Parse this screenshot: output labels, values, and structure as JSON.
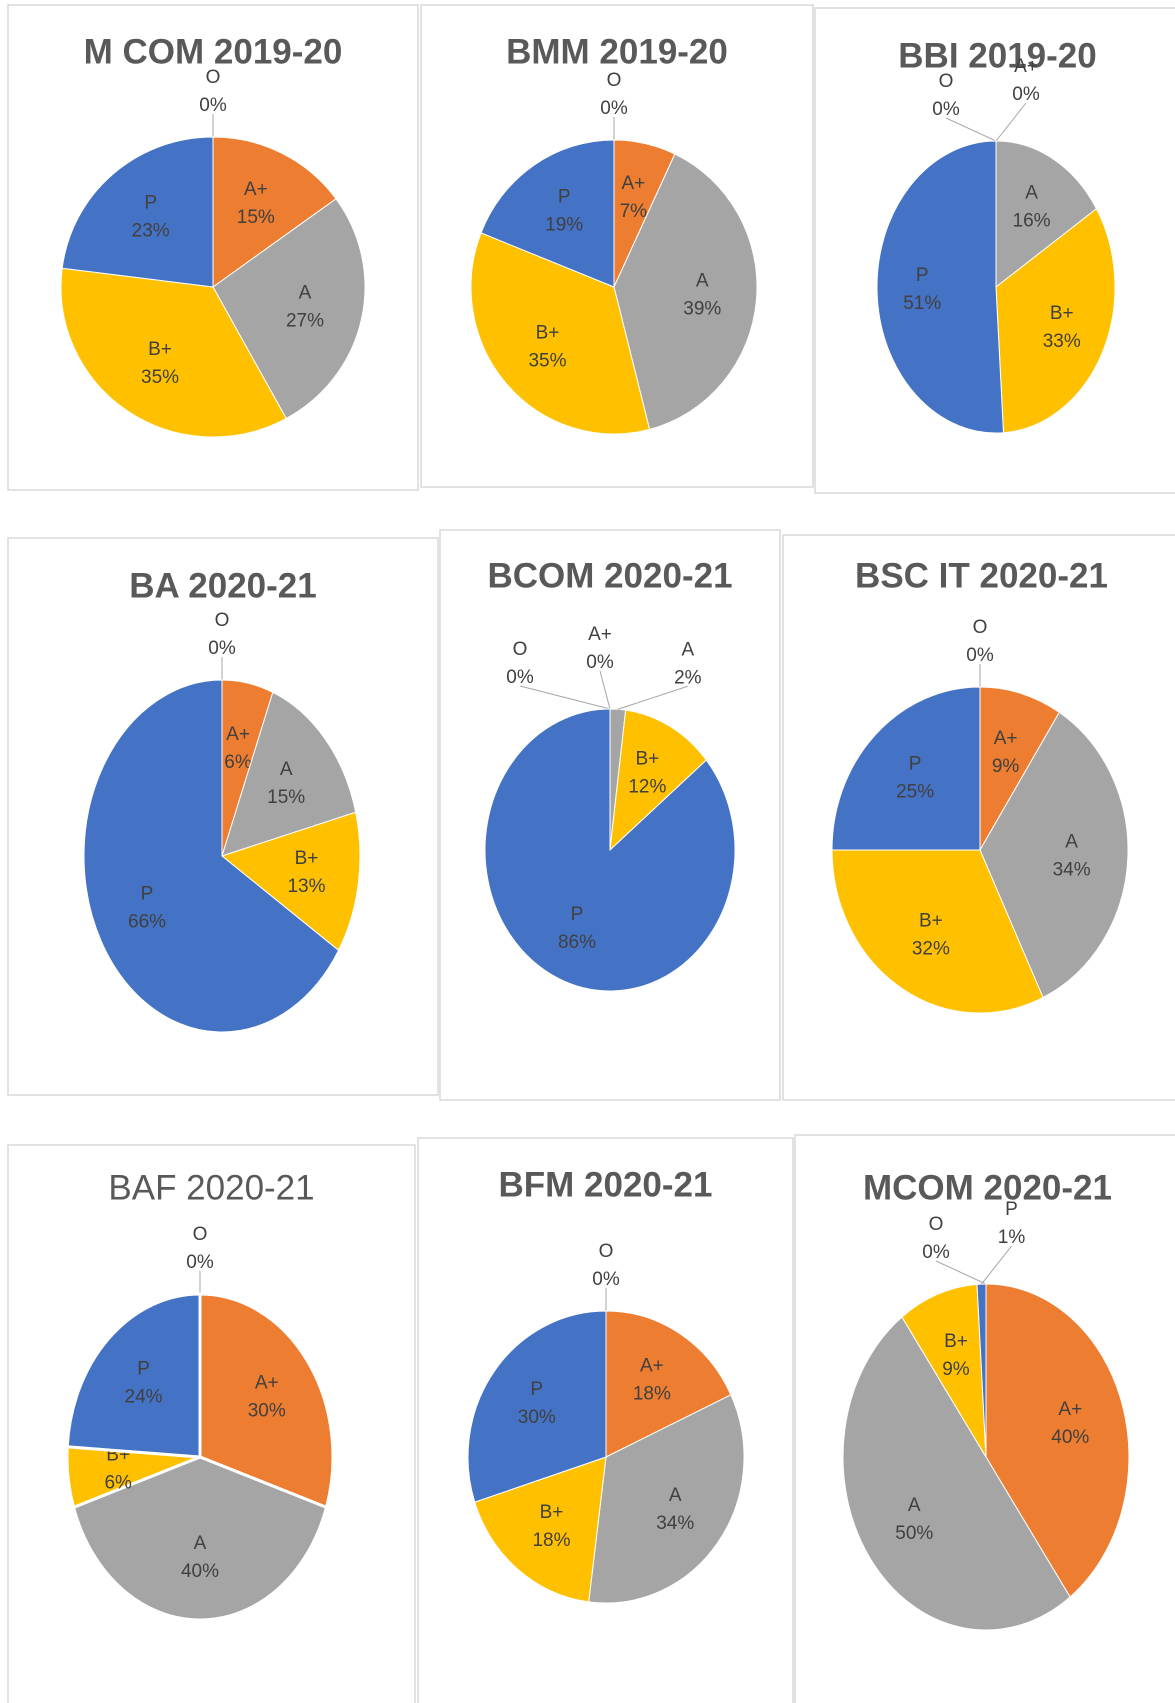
{
  "chart_data": [
    {
      "type": "pie",
      "title": "M COM 2019-20",
      "categories": [
        "O",
        "A+",
        "A",
        "B+",
        "P"
      ],
      "values": [
        0,
        15,
        27,
        35,
        23
      ],
      "value_labels": [
        "0%",
        "15%",
        "27%",
        "35%",
        "23%"
      ],
      "colors": [
        "#5b9bd5",
        "#ed7d31",
        "#a5a5a5",
        "#ffc000",
        "#4472c4"
      ]
    },
    {
      "type": "pie",
      "title": "BMM 2019-20",
      "categories": [
        "O",
        "A+",
        "A",
        "B+",
        "P"
      ],
      "values": [
        0,
        7,
        39,
        35,
        19
      ],
      "value_labels": [
        "0%",
        "7%",
        "39%",
        "35%",
        "19%"
      ],
      "colors": [
        "#5b9bd5",
        "#ed7d31",
        "#a5a5a5",
        "#ffc000",
        "#4472c4"
      ]
    },
    {
      "type": "pie",
      "title": "BBI 2019-20",
      "categories": [
        "O",
        "A+",
        "A",
        "B+",
        "P"
      ],
      "values": [
        0,
        0,
        16,
        33,
        51
      ],
      "value_labels": [
        "0%",
        "0%",
        "16%",
        "33%",
        "51%"
      ],
      "colors": [
        "#5b9bd5",
        "#ed7d31",
        "#a5a5a5",
        "#ffc000",
        "#4472c4"
      ]
    },
    {
      "type": "pie",
      "title": "BA 2020-21",
      "categories": [
        "O",
        "A+",
        "A",
        "B+",
        "P"
      ],
      "values": [
        0,
        6,
        15,
        13,
        66
      ],
      "value_labels": [
        "0%",
        "6%",
        "15%",
        "13%",
        "66%"
      ],
      "colors": [
        "#5b9bd5",
        "#ed7d31",
        "#a5a5a5",
        "#ffc000",
        "#4472c4"
      ]
    },
    {
      "type": "pie",
      "title": "BCOM 2020-21",
      "categories": [
        "O",
        "A+",
        "A",
        "B+",
        "P"
      ],
      "values": [
        0,
        0,
        2,
        12,
        86
      ],
      "value_labels": [
        "0%",
        "0%",
        "2%",
        "12%",
        "86%"
      ],
      "colors": [
        "#5b9bd5",
        "#ed7d31",
        "#a5a5a5",
        "#ffc000",
        "#4472c4"
      ]
    },
    {
      "type": "pie",
      "title": "BSC IT 2020-21",
      "categories": [
        "O",
        "A+",
        "A",
        "B+",
        "P"
      ],
      "values": [
        0,
        9,
        34,
        32,
        25
      ],
      "value_labels": [
        "0%",
        "9%",
        "34%",
        "32%",
        "25%"
      ],
      "colors": [
        "#5b9bd5",
        "#ed7d31",
        "#a5a5a5",
        "#ffc000",
        "#4472c4"
      ]
    },
    {
      "type": "pie",
      "title": "BAF 2020-21",
      "categories": [
        "O",
        "A+",
        "A",
        "B+",
        "P"
      ],
      "values": [
        0,
        30,
        40,
        6,
        24
      ],
      "value_labels": [
        "0%",
        "30%",
        "40%",
        "6%",
        "24%"
      ],
      "colors": [
        "#5b9bd5",
        "#ed7d31",
        "#a5a5a5",
        "#ffc000",
        "#4472c4"
      ]
    },
    {
      "type": "pie",
      "title": "BFM 2020-21",
      "categories": [
        "O",
        "A+",
        "A",
        "B+",
        "P"
      ],
      "values": [
        0,
        18,
        34,
        18,
        30
      ],
      "value_labels": [
        "0%",
        "18%",
        "34%",
        "18%",
        "30%"
      ],
      "colors": [
        "#5b9bd5",
        "#ed7d31",
        "#a5a5a5",
        "#ffc000",
        "#4472c4"
      ]
    },
    {
      "type": "pie",
      "title": "MCOM 2020-21",
      "categories": [
        "O",
        "A+",
        "A",
        "B+",
        "P"
      ],
      "values": [
        0,
        40,
        50,
        9,
        1
      ],
      "value_labels": [
        "0%",
        "40%",
        "50%",
        "9%",
        "1%"
      ],
      "colors": [
        "#5b9bd5",
        "#ed7d31",
        "#a5a5a5",
        "#ffc000",
        "#4472c4"
      ]
    }
  ]
}
